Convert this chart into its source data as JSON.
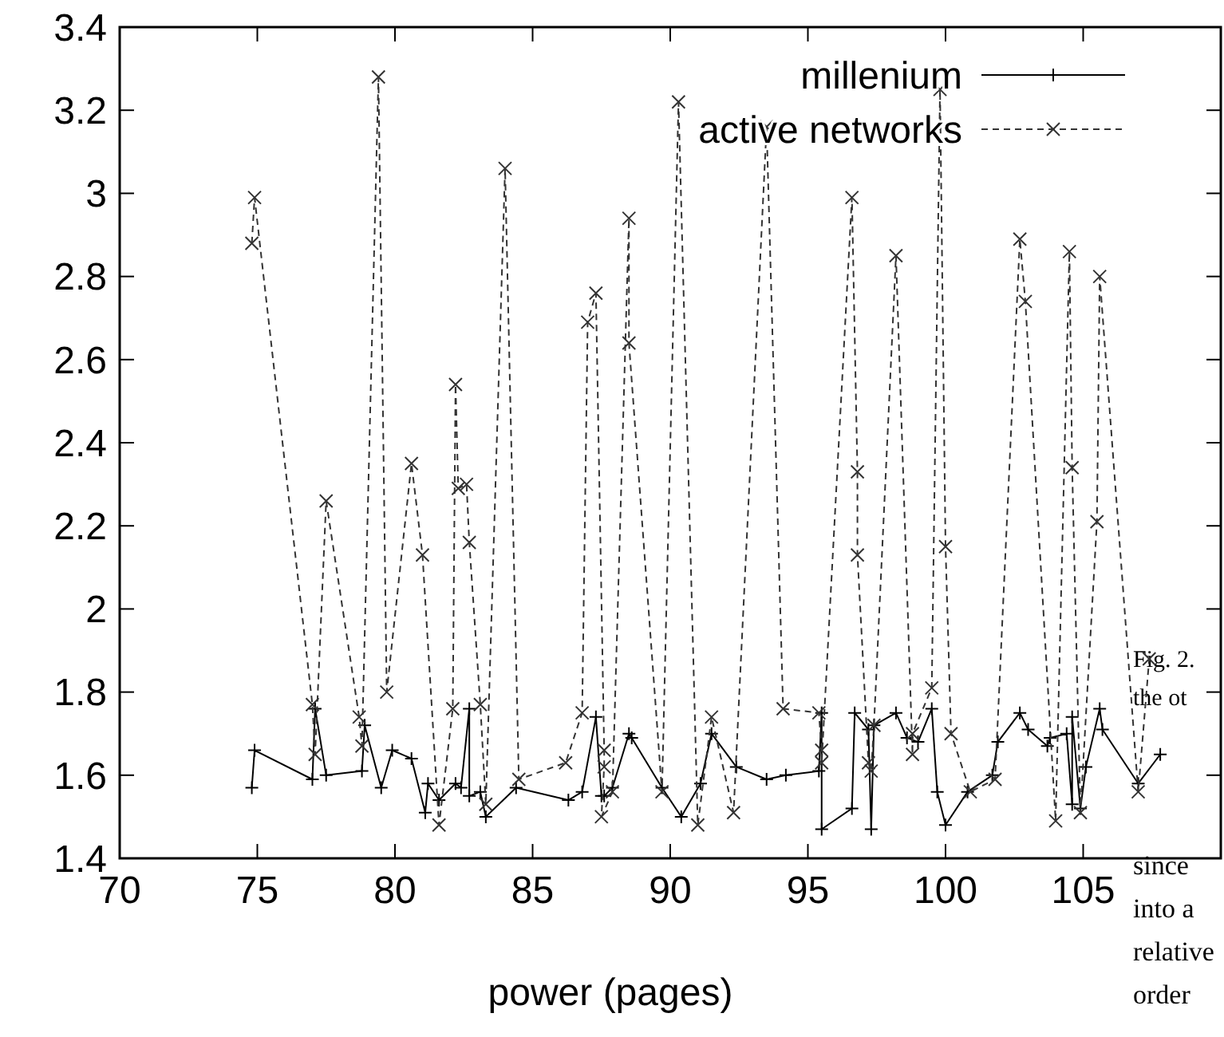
{
  "chart_data": {
    "type": "line",
    "xlabel": "power (pages)",
    "xlim": [
      70,
      110
    ],
    "xticks": [
      70,
      75,
      80,
      85,
      90,
      95,
      100,
      105,
      {
        "value": 110,
        "label": null
      }
    ],
    "ylim": [
      1.4,
      3.4
    ],
    "yticks": [
      1.4,
      1.6,
      1.8,
      2,
      2.2,
      2.4,
      2.6,
      2.8,
      3,
      3.2,
      3.4
    ],
    "grid": false,
    "legend": "top right",
    "annotations": [
      "Fig. 2.",
      "the ot",
      "since",
      "into a",
      "relative",
      "order"
    ],
    "series": [
      {
        "name": "millenium",
        "color": "#000000",
        "marker": "plus",
        "line_style": "solid",
        "x": [
          74.8,
          74.9,
          77.0,
          77.1,
          77.5,
          78.8,
          78.9,
          79.5,
          79.9,
          80.6,
          81.1,
          81.2,
          81.6,
          82.2,
          82.4,
          82.7,
          82.7,
          83.1,
          83.3,
          84.4,
          86.3,
          86.8,
          87.3,
          87.5,
          87.6,
          87.9,
          88.5,
          88.6,
          89.7,
          90.4,
          91.1,
          91.5,
          92.4,
          93.5,
          94.2,
          95.4,
          95.5,
          95.5,
          96.6,
          96.7,
          97.2,
          97.3,
          97.4,
          98.2,
          98.6,
          99.0,
          99.5,
          99.7,
          100.0,
          100.8,
          101.7,
          101.9,
          102.7,
          103.0,
          103.7,
          103.8,
          104.4,
          104.6,
          104.6,
          104.9,
          105.1,
          105.6,
          105.7,
          107.0,
          107.8
        ],
        "values": [
          1.57,
          1.66,
          1.59,
          1.76,
          1.6,
          1.61,
          1.72,
          1.57,
          1.66,
          1.64,
          1.51,
          1.58,
          1.54,
          1.58,
          1.57,
          1.76,
          1.55,
          1.56,
          1.5,
          1.57,
          1.54,
          1.56,
          1.74,
          1.55,
          1.55,
          1.57,
          1.7,
          1.69,
          1.57,
          1.5,
          1.58,
          1.7,
          1.62,
          1.59,
          1.6,
          1.61,
          1.75,
          1.47,
          1.52,
          1.75,
          1.71,
          1.47,
          1.72,
          1.75,
          1.69,
          1.68,
          1.76,
          1.56,
          1.48,
          1.56,
          1.6,
          1.68,
          1.75,
          1.71,
          1.67,
          1.69,
          1.7,
          1.53,
          1.74,
          1.52,
          1.62,
          1.76,
          1.71,
          1.58,
          1.65
        ]
      },
      {
        "name": "active networks",
        "color": "#333333",
        "marker": "cross",
        "line_style": "dashed",
        "x": [
          74.8,
          74.9,
          77.0,
          77.1,
          77.5,
          78.7,
          78.8,
          79.4,
          79.7,
          80.6,
          81.0,
          81.6,
          82.1,
          82.2,
          82.3,
          82.6,
          82.7,
          83.1,
          83.3,
          84.0,
          84.5,
          86.2,
          86.8,
          87.0,
          87.3,
          87.6,
          87.6,
          87.5,
          87.9,
          88.5,
          88.5,
          89.7,
          90.3,
          91.0,
          91.5,
          92.3,
          93.5,
          94.1,
          95.4,
          95.5,
          95.5,
          96.6,
          96.8,
          96.8,
          97.2,
          97.3,
          97.4,
          98.2,
          98.8,
          98.8,
          99.5,
          99.8,
          100.0,
          100.2,
          100.9,
          101.8,
          102.7,
          102.9,
          104.0,
          104.5,
          104.6,
          104.9,
          105.5,
          105.6,
          107.0,
          107.4
        ],
        "values": [
          2.88,
          2.99,
          1.77,
          1.65,
          2.26,
          1.74,
          1.67,
          3.28,
          1.8,
          2.35,
          2.13,
          1.48,
          1.76,
          2.54,
          2.29,
          2.3,
          2.16,
          1.77,
          1.53,
          3.06,
          1.59,
          1.63,
          1.75,
          2.69,
          2.76,
          1.66,
          1.62,
          1.5,
          1.56,
          2.94,
          2.64,
          1.56,
          3.22,
          1.48,
          1.74,
          1.51,
          3.16,
          1.76,
          1.75,
          1.66,
          1.63,
          2.99,
          2.33,
          2.13,
          1.63,
          1.61,
          1.72,
          2.85,
          1.65,
          1.7,
          1.81,
          3.25,
          2.15,
          1.7,
          1.56,
          1.59,
          2.89,
          2.74,
          1.49,
          2.86,
          2.34,
          1.51,
          2.21,
          2.8,
          1.56,
          1.88
        ]
      }
    ]
  }
}
